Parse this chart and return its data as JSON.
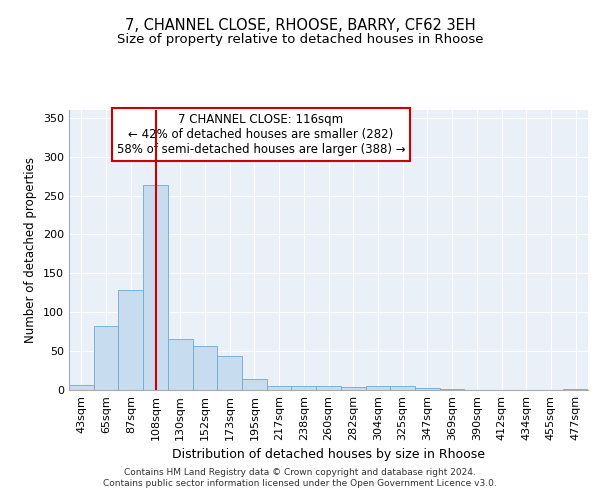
{
  "title1": "7, CHANNEL CLOSE, RHOOSE, BARRY, CF62 3EH",
  "title2": "Size of property relative to detached houses in Rhoose",
  "xlabel": "Distribution of detached houses by size in Rhoose",
  "ylabel": "Number of detached properties",
  "footer1": "Contains HM Land Registry data © Crown copyright and database right 2024.",
  "footer2": "Contains public sector information licensed under the Open Government Licence v3.0.",
  "annotation_line1": "7 CHANNEL CLOSE: 116sqm",
  "annotation_line2": "← 42% of detached houses are smaller (282)",
  "annotation_line3": "58% of semi-detached houses are larger (388) →",
  "bar_color": "#c8dcf0",
  "bar_edge_color": "#6aaad4",
  "vline_color": "#cc0000",
  "background_color": "#eaf0f8",
  "grid_color": "#ffffff",
  "categories": [
    "43sqm",
    "65sqm",
    "87sqm",
    "108sqm",
    "130sqm",
    "152sqm",
    "173sqm",
    "195sqm",
    "217sqm",
    "238sqm",
    "260sqm",
    "282sqm",
    "304sqm",
    "325sqm",
    "347sqm",
    "369sqm",
    "390sqm",
    "412sqm",
    "434sqm",
    "455sqm",
    "477sqm"
  ],
  "values": [
    6,
    82,
    128,
    263,
    66,
    57,
    44,
    14,
    5,
    5,
    5,
    4,
    5,
    5,
    3,
    1,
    0,
    0,
    0,
    0,
    1
  ],
  "vline_x": 3.5,
  "ylim": [
    0,
    360
  ],
  "yticks": [
    0,
    50,
    100,
    150,
    200,
    250,
    300,
    350
  ],
  "title1_fontsize": 10.5,
  "title2_fontsize": 9.5,
  "xlabel_fontsize": 9,
  "ylabel_fontsize": 8.5,
  "tick_fontsize": 8,
  "footer_fontsize": 6.5,
  "annotation_fontsize": 8.5
}
